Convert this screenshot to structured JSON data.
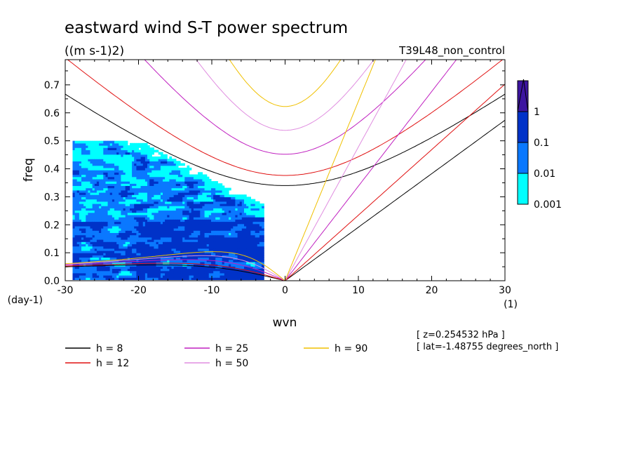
{
  "chart_data": {
    "type": "contour",
    "title": "eastward wind S-T power spectrum",
    "units": "((m s-1)2)",
    "experiment": "T39L48_non_control",
    "xlabel": "wvn",
    "ylabel": "freq",
    "x_units": "(1)",
    "y_units": "(day-1)",
    "xlim": [
      -30,
      30
    ],
    "ylim": [
      0,
      0.79
    ],
    "x_ticks": [
      -30,
      -20,
      -10,
      0,
      10,
      20,
      30
    ],
    "x_tick_labels": [
      "-30",
      "-20",
      "-10",
      "0",
      "10",
      "20",
      "30"
    ],
    "y_ticks": [
      0,
      0.1,
      0.2,
      0.3,
      0.4,
      0.5,
      0.6,
      0.7
    ],
    "y_tick_labels": [
      "0.0",
      "0.1",
      "0.2",
      "0.3",
      "0.4",
      "0.5",
      "0.6",
      "0.7"
    ],
    "colorbar": {
      "levels": [
        "0.001",
        "0.01",
        "0.1",
        "1"
      ],
      "colors": [
        "#00ffff",
        "#0a78ff",
        "#0032c8",
        "#3c14a0"
      ]
    },
    "dispersion_curves": [
      {
        "label": "h =  8",
        "h": 8,
        "color": "#000000",
        "kelvin_max_freq": 0.57,
        "ig_min_freq": 0.335,
        "rossby_freq_at_-30": 0.056
      },
      {
        "label": "h = 12",
        "h": 12,
        "color": "#e01010",
        "kelvin_max_freq": 0.69,
        "ig_min_freq": 0.37,
        "rossby_freq_at_-30": 0.058
      },
      {
        "label": "h = 25",
        "h": 25,
        "color": "#c020c0",
        "kelvin_max_freq": 0.79,
        "ig_min_freq": 0.445,
        "rossby_freq_at_-30": 0.059
      },
      {
        "label": "h = 50",
        "h": 50,
        "color": "#e08ee0",
        "kelvin_max_freq": 0.79,
        "ig_min_freq": 0.525,
        "rossby_freq_at_-30": 0.06
      },
      {
        "label": "h = 90",
        "h": 90,
        "color": "#f0c000",
        "kelvin_max_freq": 0.79,
        "ig_min_freq": 0.61,
        "rossby_freq_at_-30": 0.061
      }
    ],
    "power_region": {
      "wavenumber_range": [
        -29,
        -3
      ],
      "frequency_range": [
        0,
        0.5
      ],
      "max_level": "0.1"
    },
    "annotations": [
      "[ z=0.254532 hPa ]",
      "[ lat=-1.48755 degrees_north ]"
    ]
  }
}
